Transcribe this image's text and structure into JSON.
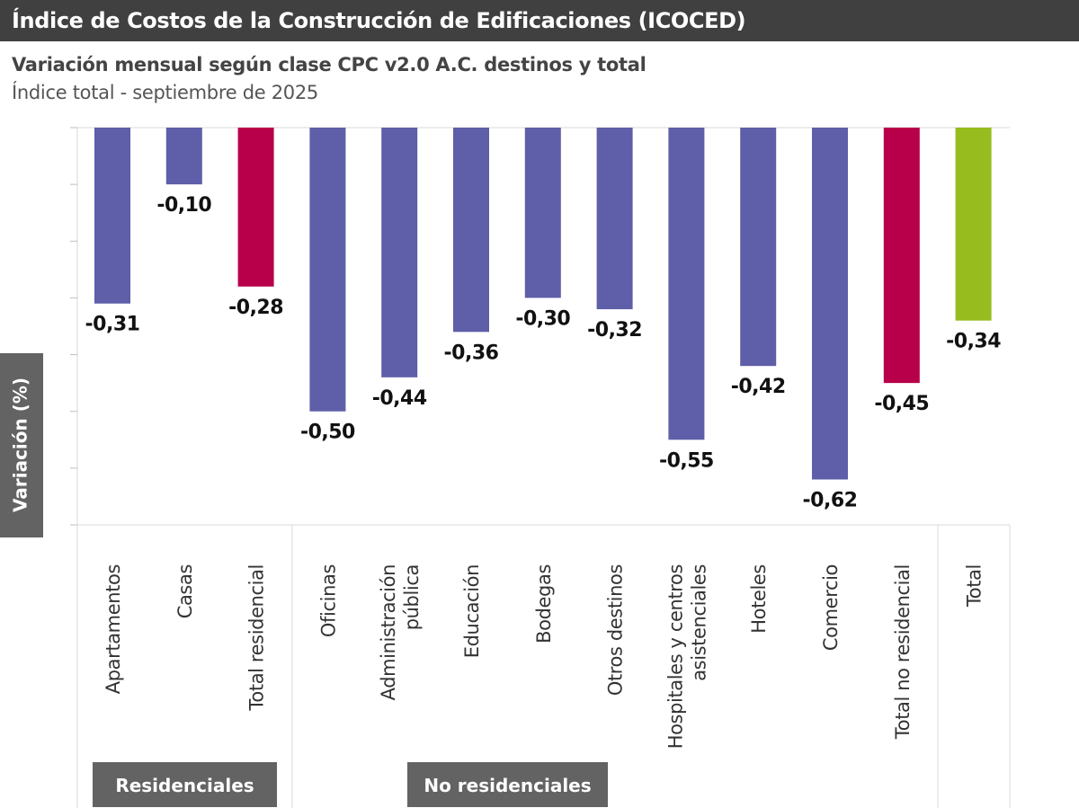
{
  "header": {
    "title": "Índice de Costos de la Construcción de Edificaciones (ICOCED)",
    "subtitle": "Variación mensual según clase CPC v2.0 A.C. destinos y total",
    "subtitle2": "Índice total - septiembre de 2025"
  },
  "chart_data": {
    "type": "bar",
    "ylabel": "Variación (%)",
    "ylim": [
      -0.7,
      0
    ],
    "grid": false,
    "categories": [
      "Apartamentos",
      "Casas",
      "Total residencial",
      "Oficinas",
      "Administración pública",
      "Educación",
      "Bodegas",
      "Otros destinos",
      "Hospitales y centros asistenciales",
      "Hoteles",
      "Comercio",
      "Total no residencial",
      "Total"
    ],
    "category_lines": [
      [
        "Apartamentos"
      ],
      [
        "Casas"
      ],
      [
        "Total residencial"
      ],
      [
        "Oficinas"
      ],
      [
        "Administración",
        "pública"
      ],
      [
        "Educación"
      ],
      [
        "Bodegas"
      ],
      [
        "Otros destinos"
      ],
      [
        "Hospitales y centros",
        "asistenciales"
      ],
      [
        "Hoteles"
      ],
      [
        "Comercio"
      ],
      [
        "Total no residencial"
      ],
      [
        "Total"
      ]
    ],
    "values": [
      -0.31,
      -0.1,
      -0.28,
      -0.5,
      -0.44,
      -0.36,
      -0.3,
      -0.32,
      -0.55,
      -0.42,
      -0.62,
      -0.45,
      -0.34
    ],
    "data_labels": [
      "-0,31",
      "-0,10",
      "-0,28",
      "-0,50",
      "-0,44",
      "-0,36",
      "-0,30",
      "-0,32",
      "-0,55",
      "-0,42",
      "-0,62",
      "-0,45",
      "-0,34"
    ],
    "bar_colors": [
      "#5f5ea8",
      "#5f5ea8",
      "#b8004a",
      "#5f5ea8",
      "#5f5ea8",
      "#5f5ea8",
      "#5f5ea8",
      "#5f5ea8",
      "#5f5ea8",
      "#5f5ea8",
      "#5f5ea8",
      "#b8004a",
      "#96bc1e"
    ],
    "groups": [
      {
        "label": "Residenciales",
        "members": [
          "Apartamentos",
          "Casas",
          "Total residencial"
        ]
      },
      {
        "label": "No residenciales",
        "members": [
          "Oficinas",
          "Administración pública",
          "Educación",
          "Bodegas",
          "Otros destinos",
          "Hospitales y centros asistenciales",
          "Hoteles",
          "Comercio",
          "Total no residencial"
        ]
      }
    ]
  }
}
